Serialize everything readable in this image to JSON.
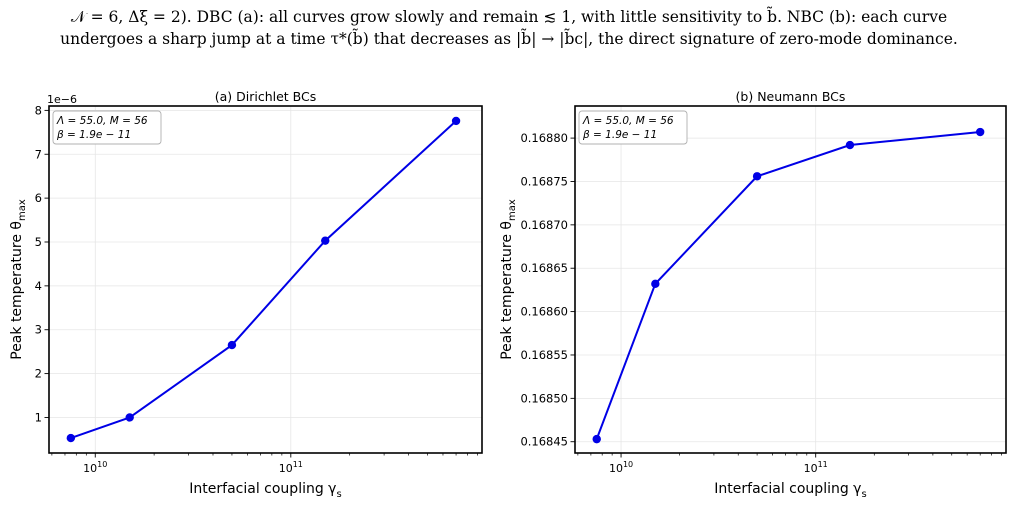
{
  "caption": {
    "line1": "𝒩 = 6, Δξ = 2). DBC (a): all curves grow slowly and remain ≲ 1, with little sensitivity to b̃. NBC (b): each curve",
    "line2": "undergoes a sharp jump at a time τ*(b̃) that decreases as |b̃| → |b̃c|, the direct signature of zero-mode dominance."
  },
  "series_color": "#0000e6",
  "chart_data": [
    {
      "type": "line",
      "title": "(a) Dirichlet BCs",
      "xlabel": "Interfacial coupling γ_s",
      "ylabel": "Peak temperature θ_max",
      "xscale": "log",
      "xlim": [
        5800000000.0,
        950000000000.0
      ],
      "ylim": [
        1.9e-07,
        8.1e-06
      ],
      "offset_text": "1e−6",
      "x_ticks": [
        {
          "value": 10000000000.0,
          "label": "10^10"
        },
        {
          "value": 100000000000.0,
          "label": "10^11"
        }
      ],
      "y_ticks": [
        {
          "value": 1e-06,
          "label": "1"
        },
        {
          "value": 2e-06,
          "label": "2"
        },
        {
          "value": 3e-06,
          "label": "3"
        },
        {
          "value": 4e-06,
          "label": "4"
        },
        {
          "value": 5e-06,
          "label": "5"
        },
        {
          "value": 6e-06,
          "label": "6"
        },
        {
          "value": 7e-06,
          "label": "7"
        },
        {
          "value": 8e-06,
          "label": "8"
        }
      ],
      "x": [
        7500000000.0,
        15000000000.0,
        50000000000.0,
        150000000000.0,
        700000000000.0
      ],
      "y": [
        5.3e-07,
        1e-06,
        2.65e-06,
        5.03e-06,
        7.76e-06
      ],
      "grid": true,
      "annotation": [
        "Λ = 55.0,  M = 56",
        "β = 1.9e − 11"
      ]
    },
    {
      "type": "line",
      "title": "(b) Neumann BCs",
      "xlabel": "Interfacial coupling γ_s",
      "ylabel": "Peak temperature θ_max",
      "xscale": "log",
      "xlim": [
        5800000000.0,
        950000000000.0
      ],
      "ylim": [
        0.168437,
        0.168837
      ],
      "x_ticks": [
        {
          "value": 10000000000.0,
          "label": "10^10"
        },
        {
          "value": 100000000000.0,
          "label": "10^11"
        }
      ],
      "y_ticks": [
        {
          "value": 0.16845,
          "label": "0.16845"
        },
        {
          "value": 0.1685,
          "label": "0.16850"
        },
        {
          "value": 0.16855,
          "label": "0.16855"
        },
        {
          "value": 0.1686,
          "label": "0.16860"
        },
        {
          "value": 0.16865,
          "label": "0.16865"
        },
        {
          "value": 0.1687,
          "label": "0.16870"
        },
        {
          "value": 0.16875,
          "label": "0.16875"
        },
        {
          "value": 0.1688,
          "label": "0.16880"
        }
      ],
      "x": [
        7500000000.0,
        15000000000.0,
        50000000000.0,
        150000000000.0,
        700000000000.0
      ],
      "y": [
        0.168453,
        0.168632,
        0.168756,
        0.168792,
        0.168807
      ],
      "grid": true,
      "annotation": [
        "Λ = 55.0,  M = 56",
        "β = 1.9e − 11"
      ]
    }
  ]
}
